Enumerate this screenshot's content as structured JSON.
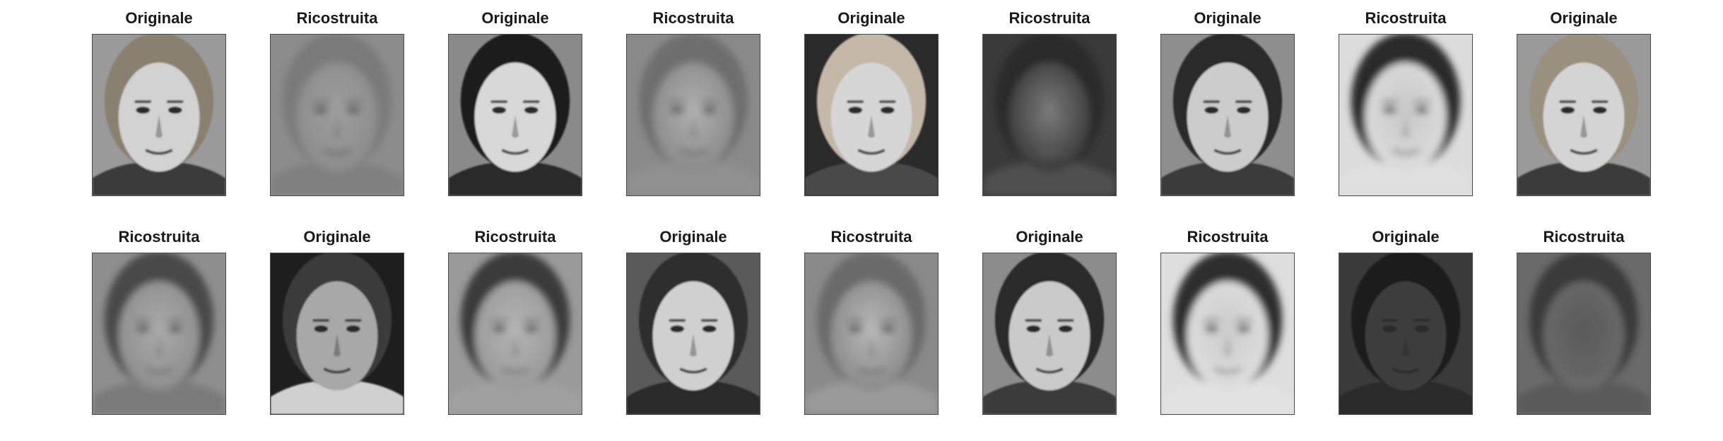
{
  "panels": [
    {
      "title": "Originale",
      "kind": "original",
      "bg": "#9a9a9a",
      "hair": "#8a8070",
      "skin": "#d2d2d2",
      "shirt": "#3a3a3a"
    },
    {
      "title": "Ricostruita",
      "kind": "reconstructed",
      "bg": "#8c8c8c",
      "hair": "#7a7a7a",
      "skin": "#9e9e9e",
      "shirt": "#808080"
    },
    {
      "title": "Originale",
      "kind": "original",
      "bg": "#8a8a8a",
      "hair": "#1e1e1e",
      "skin": "#d8d8d8",
      "shirt": "#2a2a2a"
    },
    {
      "title": "Ricostruita",
      "kind": "reconstructed",
      "bg": "#8a8a8a",
      "hair": "#6e6e6e",
      "skin": "#b0b0b0",
      "shirt": "#909090"
    },
    {
      "title": "Originale",
      "kind": "original",
      "bg": "#2a2a2a",
      "hair": "#c4b8a8",
      "skin": "#d6d6d6",
      "shirt": "#4a4a4a"
    },
    {
      "title": "Ricostruita",
      "kind": "reconstructed",
      "bg": "#3a3a3a",
      "hair": "#2a2a2a",
      "skin": "#7c7c7c",
      "shirt": "#505050"
    },
    {
      "title": "Originale",
      "kind": "original",
      "bg": "#8e8e8e",
      "hair": "#2a2a2a",
      "skin": "#cccccc",
      "shirt": "#3a3a3a"
    },
    {
      "title": "Ricostruita",
      "kind": "reconstructed",
      "bg": "#dcdcdc",
      "hair": "#2a2a2a",
      "skin": "#c8c8c8",
      "shirt": "#e0e0e0"
    },
    {
      "title": "Originale",
      "kind": "original",
      "bg": "#9a9a9a",
      "hair": "#9a9080",
      "skin": "#d4d4d4",
      "shirt": "#3a3a3a"
    },
    {
      "title": "Ricostruita",
      "kind": "reconstructed",
      "bg": "#8e8e8e",
      "hair": "#4a4a4a",
      "skin": "#aaaaaa",
      "shirt": "#7a7a7a"
    },
    {
      "title": "Originale",
      "kind": "original",
      "bg": "#1e1e1e",
      "hair": "#3a3a3a",
      "skin": "#a8a8a8",
      "shirt": "#d0d0d0"
    },
    {
      "title": "Ricostruita",
      "kind": "reconstructed",
      "bg": "#9a9a9a",
      "hair": "#3a3a3a",
      "skin": "#b4b4b4",
      "shirt": "#a0a0a0"
    },
    {
      "title": "Originale",
      "kind": "original",
      "bg": "#5a5a5a",
      "hair": "#2e2e2e",
      "skin": "#d0d0d0",
      "shirt": "#2a2a2a"
    },
    {
      "title": "Ricostruita",
      "kind": "reconstructed",
      "bg": "#8a8a8a",
      "hair": "#6a6a6a",
      "skin": "#b8b8b8",
      "shirt": "#9a9a9a"
    },
    {
      "title": "Originale",
      "kind": "original",
      "bg": "#8c8c8c",
      "hair": "#2a2a2a",
      "skin": "#cacaca",
      "shirt": "#3a3a3a"
    },
    {
      "title": "Ricostruita",
      "kind": "reconstructed",
      "bg": "#dedede",
      "hair": "#2e2e2e",
      "skin": "#cccccc",
      "shirt": "#e2e2e2"
    },
    {
      "title": "Originale",
      "kind": "original",
      "bg": "#3a3a3a",
      "hair": "#1a1a1a",
      "skin": "#3c3c3c",
      "shirt": "#2a2a2a"
    },
    {
      "title": "Ricostruita",
      "kind": "reconstructed",
      "bg": "#6a6a6a",
      "hair": "#3a3a3a",
      "skin": "#5a5a5a",
      "shirt": "#5a5a5a"
    }
  ]
}
